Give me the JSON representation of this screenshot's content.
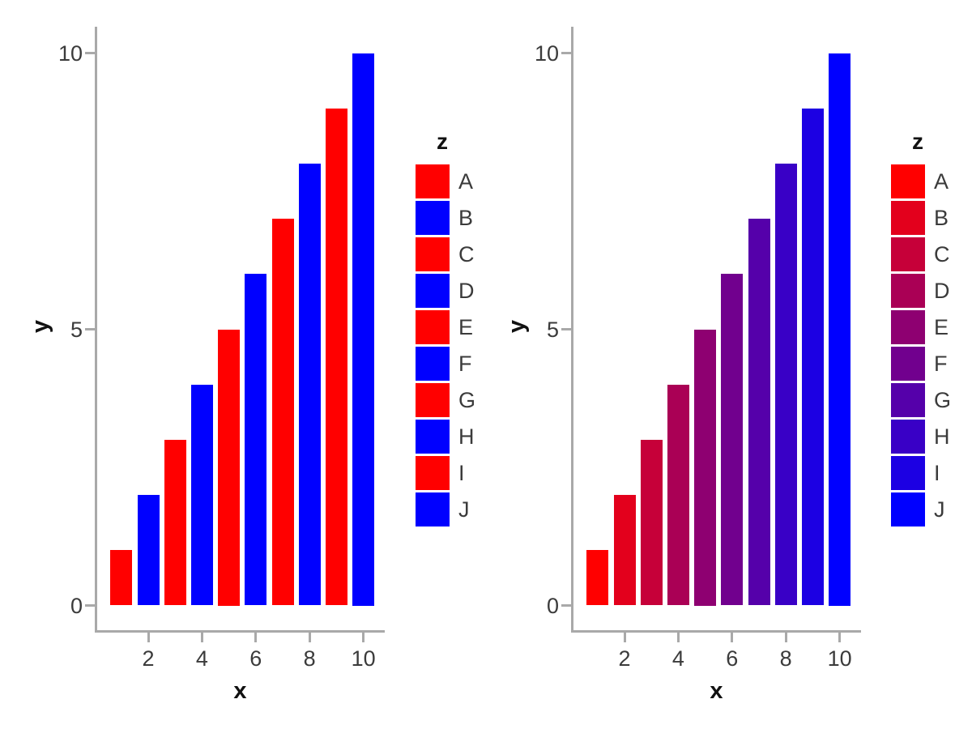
{
  "figure": {
    "background": "#ffffff",
    "axis_color": "#a9a9a9",
    "text_color": "#3b3b3b"
  },
  "chart_data": [
    {
      "type": "bar",
      "title": "",
      "xlabel": "x",
      "ylabel": "y",
      "legend_title": "z",
      "x": [
        1,
        2,
        3,
        4,
        5,
        6,
        7,
        8,
        9,
        10
      ],
      "values": [
        1,
        2,
        3,
        4,
        5,
        6,
        7,
        8,
        9,
        10
      ],
      "categories": [
        "A",
        "B",
        "C",
        "D",
        "E",
        "F",
        "G",
        "H",
        "I",
        "J"
      ],
      "bar_colors": [
        "#ff0000",
        "#0000ff",
        "#ff0000",
        "#0000ff",
        "#ff0000",
        "#0000ff",
        "#ff0000",
        "#0000ff",
        "#ff0000",
        "#0000ff"
      ],
      "xticks": [
        2,
        4,
        6,
        8,
        10
      ],
      "yticks": [
        0,
        5,
        10
      ],
      "xlim": [
        0,
        10.8
      ],
      "ylim": [
        -0.5,
        10.5
      ],
      "grid": false,
      "legend_position": "right",
      "color_scheme": "alternating red/blue"
    },
    {
      "type": "bar",
      "title": "",
      "xlabel": "x",
      "ylabel": "y",
      "legend_title": "z",
      "x": [
        1,
        2,
        3,
        4,
        5,
        6,
        7,
        8,
        9,
        10
      ],
      "values": [
        1,
        2,
        3,
        4,
        5,
        6,
        7,
        8,
        9,
        10
      ],
      "categories": [
        "A",
        "B",
        "C",
        "D",
        "E",
        "F",
        "G",
        "H",
        "I",
        "J"
      ],
      "bar_colors": [
        "#ff0000",
        "#e3001c",
        "#c60039",
        "#aa0055",
        "#8e0071",
        "#71008e",
        "#5500aa",
        "#3900c6",
        "#1c00e3",
        "#0000ff"
      ],
      "xticks": [
        2,
        4,
        6,
        8,
        10
      ],
      "yticks": [
        0,
        5,
        10
      ],
      "xlim": [
        0,
        10.8
      ],
      "ylim": [
        -0.5,
        10.5
      ],
      "grid": false,
      "legend_position": "right",
      "color_scheme": "red-to-blue gradient"
    }
  ]
}
